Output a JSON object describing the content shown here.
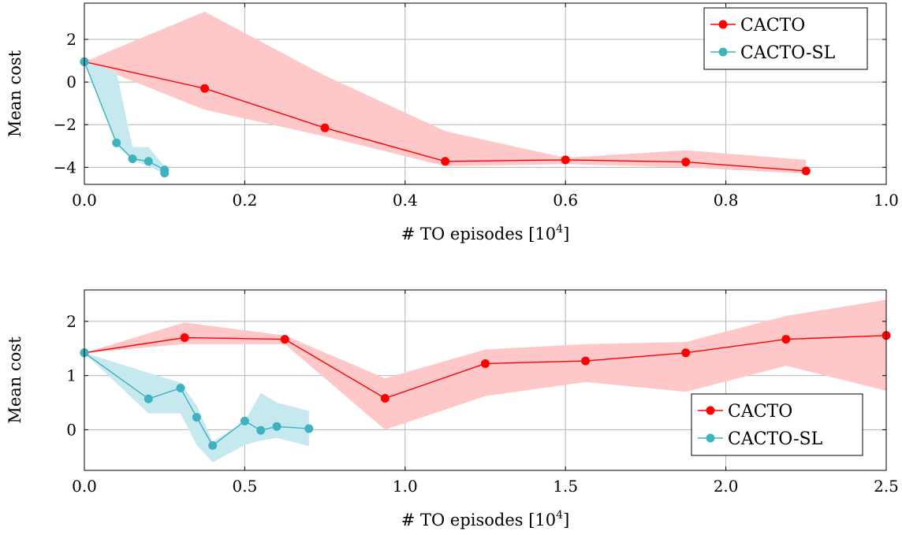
{
  "chart_data": [
    {
      "type": "line",
      "xlabel": "# TO episodes [10^4]",
      "xlabel_parts": {
        "prefix": "# TO episodes [10",
        "exp": "4",
        "suffix": "]"
      },
      "ylabel": "Mean cost",
      "xlim": [
        0,
        1.0
      ],
      "ylim": [
        -4.8,
        3.7
      ],
      "xticks": [
        0.0,
        0.2,
        0.4,
        0.6,
        0.8,
        1.0
      ],
      "xtick_labels": [
        "0.0",
        "0.2",
        "0.4",
        "0.6",
        "0.8",
        "1.0"
      ],
      "yticks": [
        -4,
        -2,
        0,
        2
      ],
      "ytick_labels": [
        "−4",
        "−2",
        "0",
        "2"
      ],
      "grid": true,
      "legend_position": "top-right",
      "series": [
        {
          "name": "CACTO",
          "color": "#ff0000",
          "band_color": "#ffc8c8",
          "x": [
            0,
            0.15,
            0.3,
            0.45,
            0.6,
            0.75,
            0.9
          ],
          "y": [
            0.95,
            -0.3,
            -2.15,
            -3.72,
            -3.65,
            -3.75,
            -4.17
          ],
          "upper": [
            0.95,
            3.3,
            0.3,
            -2.3,
            -3.55,
            -3.2,
            -3.65
          ],
          "lower": [
            0.95,
            -1.3,
            -2.55,
            -3.95,
            -3.85,
            -4.0,
            -4.3
          ]
        },
        {
          "name": "CACTO-SL",
          "color": "#3fb2c0",
          "band_color": "#c6e9ef",
          "x": [
            0,
            0.04,
            0.06,
            0.08,
            0.1,
            0.1
          ],
          "y": [
            0.95,
            -2.85,
            -3.6,
            -3.72,
            -4.12,
            -4.27
          ],
          "upper": [
            0.95,
            0.5,
            -3.05,
            -3.05,
            -3.95,
            -4.0
          ],
          "lower": [
            0.95,
            -3.0,
            -3.65,
            -3.95,
            -4.3,
            -4.35
          ]
        }
      ]
    },
    {
      "type": "line",
      "xlabel": "# TO episodes [10^4]",
      "xlabel_parts": {
        "prefix": "# TO episodes [10",
        "exp": "4",
        "suffix": "]"
      },
      "ylabel": "Mean cost",
      "xlim": [
        0,
        2.5
      ],
      "ylim": [
        -0.75,
        2.58
      ],
      "xticks": [
        0.0,
        0.5,
        1.0,
        1.5,
        2.0,
        2.5
      ],
      "xtick_labels": [
        "0.0",
        "0.5",
        "1.0",
        "1.5",
        "2.0",
        "2.5"
      ],
      "yticks": [
        0,
        1,
        2
      ],
      "ytick_labels": [
        "0",
        "1",
        "2"
      ],
      "grid": true,
      "legend_position": "bottom-right",
      "series": [
        {
          "name": "CACTO",
          "color": "#ff0000",
          "band_color": "#ffc8c8",
          "x": [
            0,
            0.3125,
            0.625,
            0.9375,
            1.25,
            1.5625,
            1.875,
            2.1875,
            2.5
          ],
          "y": [
            1.42,
            1.7,
            1.67,
            0.58,
            1.22,
            1.27,
            1.42,
            1.67,
            1.74
          ],
          "upper": [
            1.42,
            1.98,
            1.74,
            0.95,
            1.48,
            1.58,
            1.62,
            2.1,
            2.4
          ],
          "lower": [
            1.42,
            1.58,
            1.58,
            0.0,
            0.62,
            0.88,
            0.7,
            1.18,
            0.72
          ]
        },
        {
          "name": "CACTO-SL",
          "color": "#3fb2c0",
          "band_color": "#c6e9ef",
          "x": [
            0,
            0.2,
            0.3,
            0.35,
            0.4,
            0.5,
            0.55,
            0.6,
            0.7
          ],
          "y": [
            1.42,
            0.57,
            0.77,
            0.23,
            -0.29,
            0.16,
            -0.01,
            0.06,
            0.02
          ],
          "upper": [
            1.42,
            1.05,
            0.87,
            0.45,
            -0.22,
            0.15,
            0.68,
            0.5,
            0.35
          ],
          "lower": [
            1.42,
            0.3,
            0.3,
            -0.28,
            -0.6,
            -0.28,
            -0.2,
            -0.15,
            -0.3
          ]
        }
      ]
    }
  ]
}
